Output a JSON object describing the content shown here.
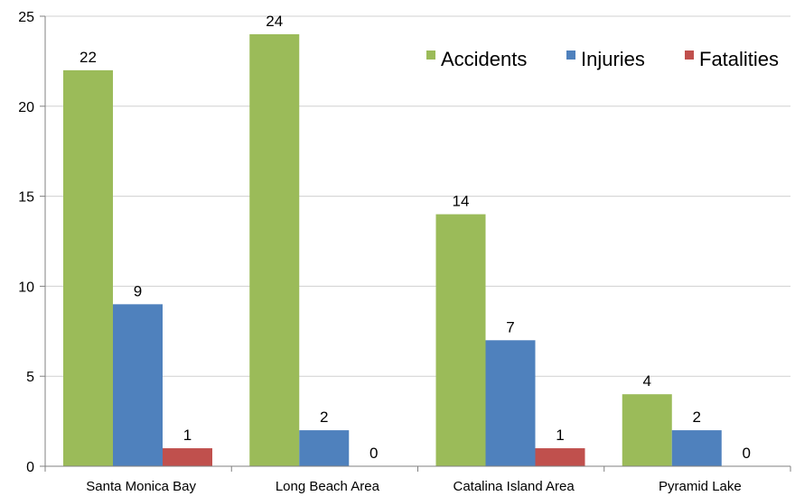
{
  "chart_data": {
    "type": "bar",
    "categories": [
      "Santa Monica Bay",
      "Long Beach Area",
      "Catalina Island Area",
      "Pyramid Lake"
    ],
    "series": [
      {
        "name": "Accidents",
        "values": [
          22,
          24,
          14,
          4
        ],
        "color": "#9bbb59"
      },
      {
        "name": "Injuries",
        "values": [
          9,
          2,
          7,
          2
        ],
        "color": "#4f81bd"
      },
      {
        "name": "Fatalities",
        "values": [
          1,
          0,
          1,
          0
        ],
        "color": "#c0504d"
      }
    ],
    "ylim": [
      0,
      25
    ],
    "yticks": [
      0,
      5,
      10,
      15,
      20,
      25
    ],
    "grid": true,
    "legend": "top-right",
    "data_labels": true
  }
}
